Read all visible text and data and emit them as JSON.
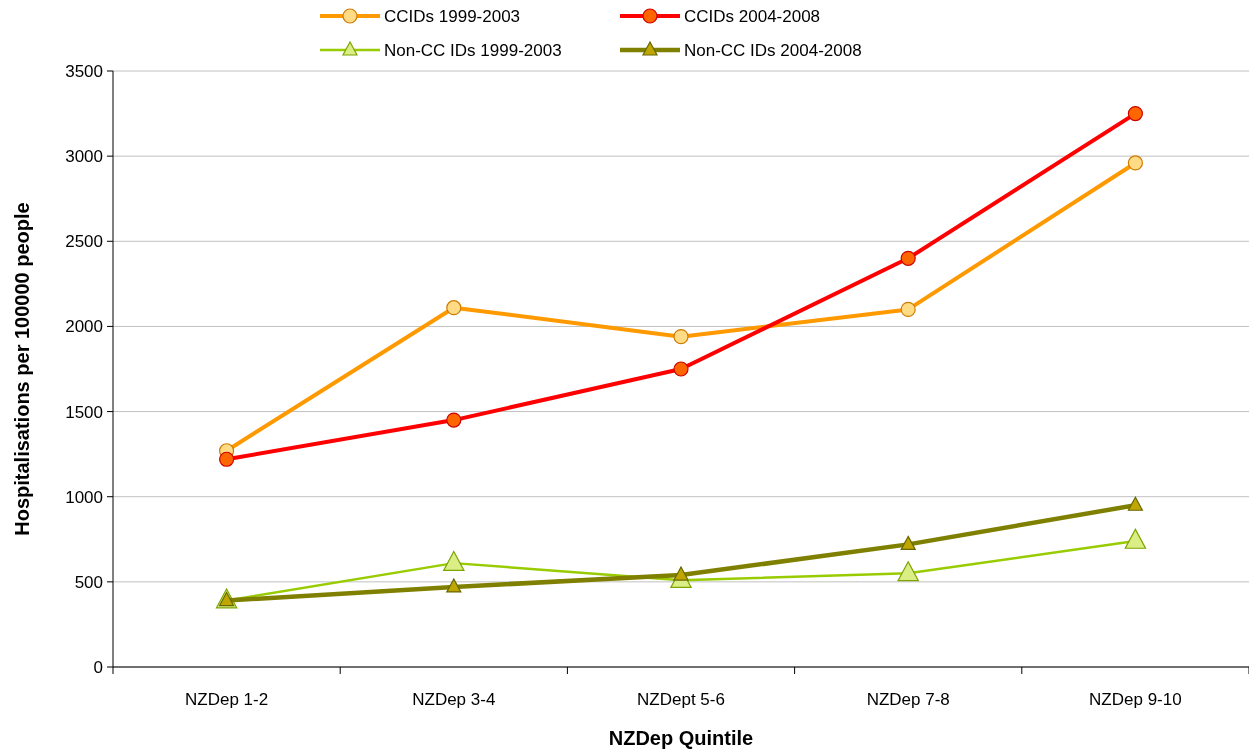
{
  "chart_data": {
    "type": "line",
    "xlabel": "NZDep Quintile",
    "ylabel": "Hospitalisations per 100000 people",
    "categories": [
      "NZDep 1-2",
      "NZDep 3-4",
      "NZDept 5-6",
      "NZDep 7-8",
      "NZDep 9-10"
    ],
    "series": [
      {
        "name": "CCIDs 1999-2003",
        "color": "#ff9900",
        "marker": "circle",
        "values": [
          1270,
          2110,
          1940,
          2100,
          2960
        ]
      },
      {
        "name": "CCIDs 2004-2008",
        "color": "#ff0000",
        "marker": "circle",
        "values": [
          1220,
          1450,
          1750,
          2400,
          3250
        ]
      },
      {
        "name": "Non-CC IDs 1999-2003",
        "color": "#99cc00",
        "marker": "triangle",
        "values": [
          390,
          610,
          510,
          550,
          740
        ]
      },
      {
        "name": "Non-CC IDs 2004-2008",
        "color": "#808000",
        "marker": "triangle",
        "values": [
          390,
          470,
          540,
          720,
          950
        ]
      }
    ],
    "ylim": [
      0,
      3500
    ],
    "yticks": [
      0,
      500,
      1000,
      1500,
      2000,
      2500,
      3000,
      3500
    ],
    "grid": "y",
    "legend": "top"
  }
}
